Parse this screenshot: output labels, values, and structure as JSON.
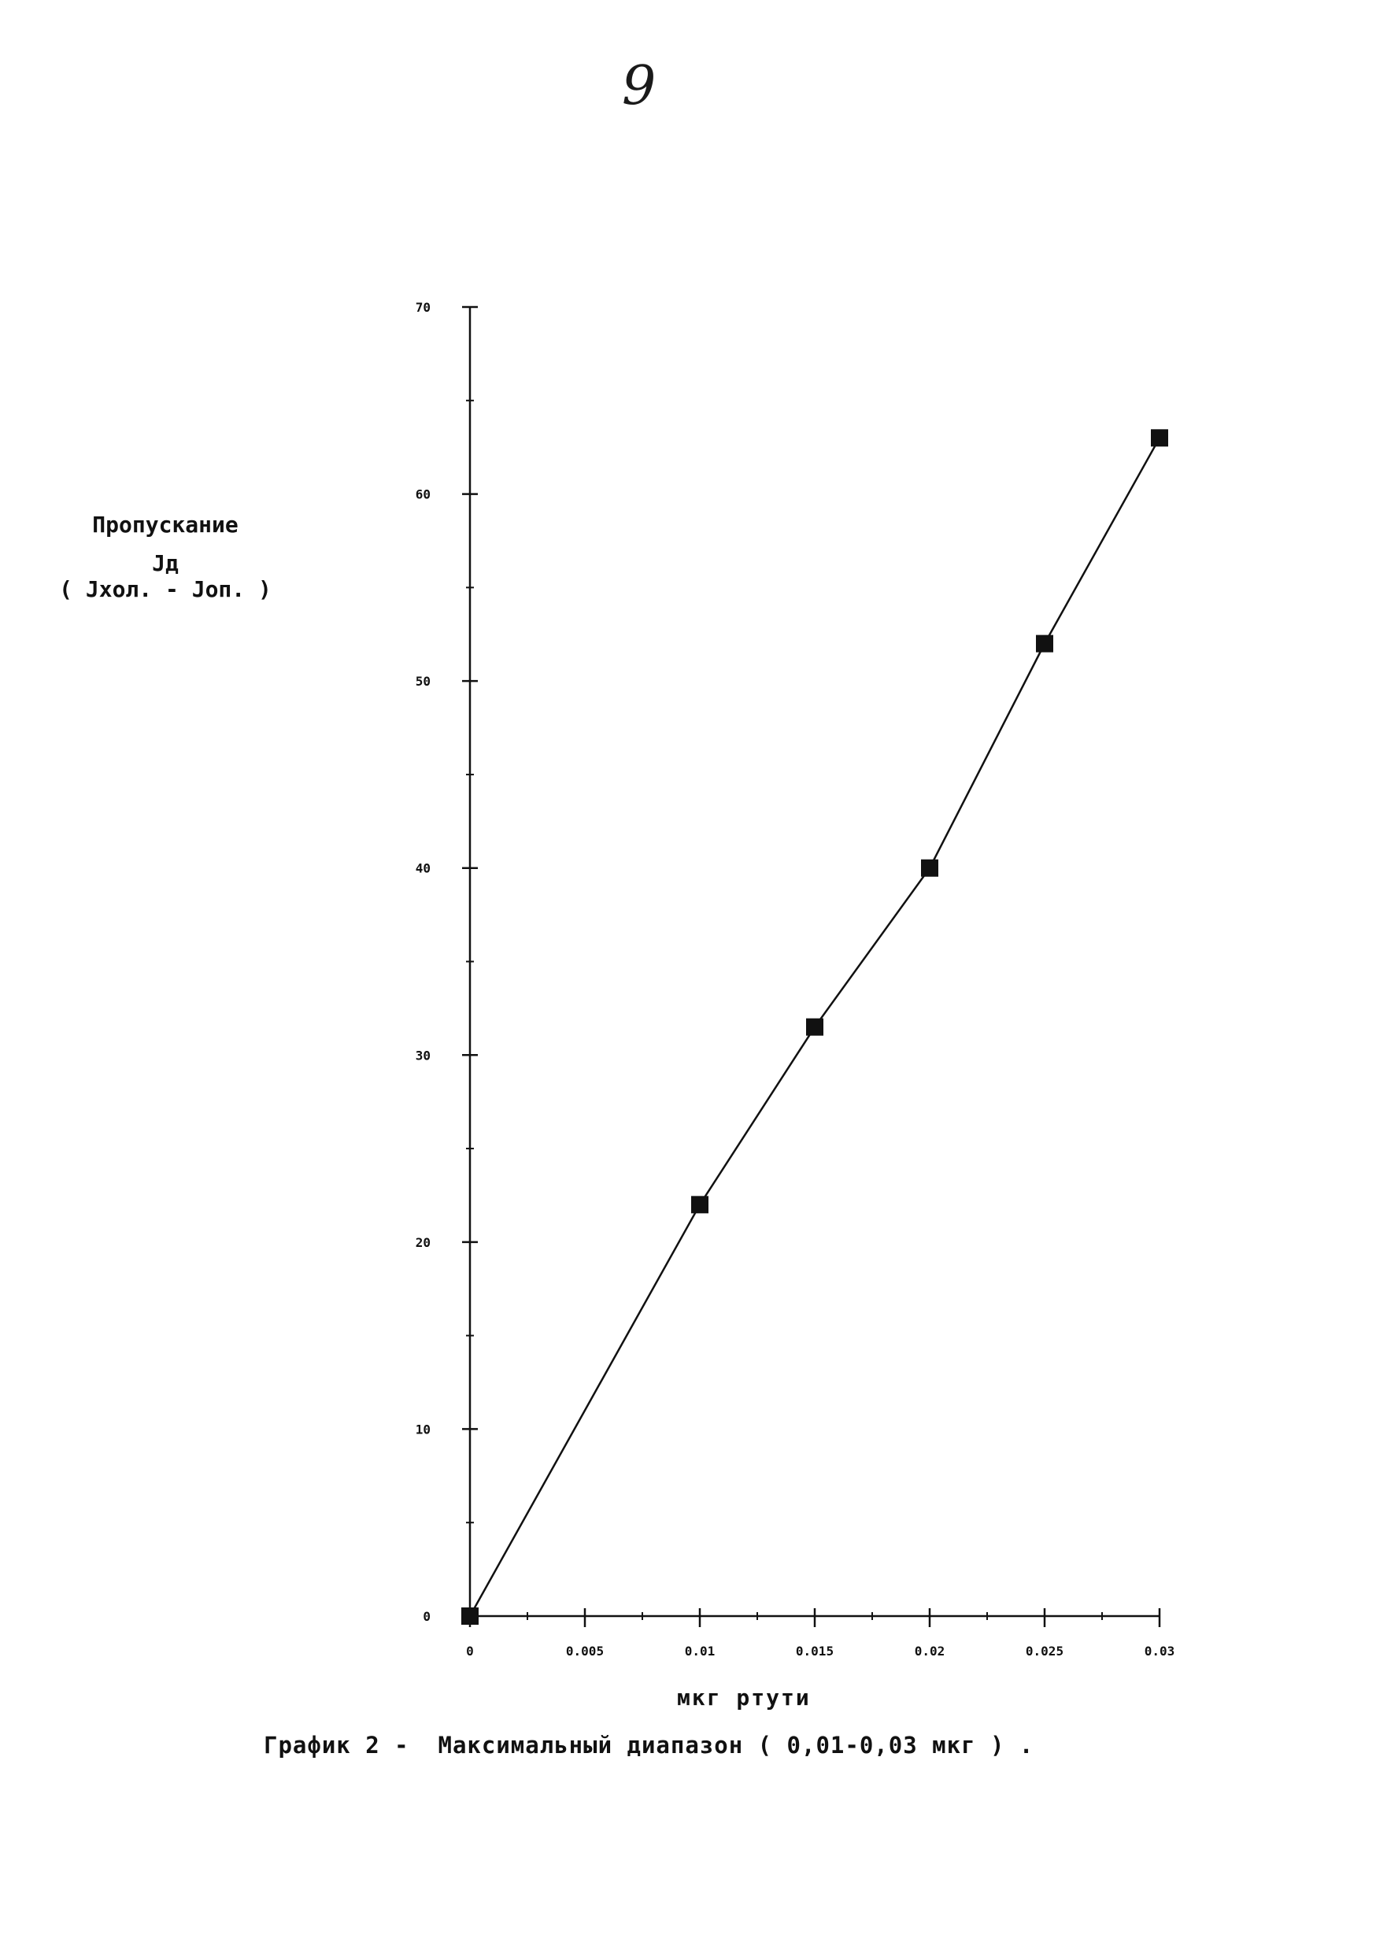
{
  "page": {
    "page_number": "9"
  },
  "chart_data": {
    "type": "line",
    "ylabel_title": "Пропускание",
    "ylabel_symbol": "Jд",
    "ylabel_formula": "( Jхол. - Jоп. )",
    "xlabel": "мкг ртути",
    "caption": "График 2 -  Максимальный диапазон ( 0,01-0,03 мкг ) .",
    "xlim": [
      0,
      0.03
    ],
    "ylim": [
      0,
      70
    ],
    "x_ticks": [
      "0",
      "0.005",
      "0.01",
      "0.015",
      "0.02",
      "0.025",
      "0.03"
    ],
    "x_tick_values": [
      0,
      0.005,
      0.01,
      0.015,
      0.02,
      0.025,
      0.03
    ],
    "y_ticks": [
      "0",
      "10",
      "20",
      "30",
      "40",
      "50",
      "60",
      "70"
    ],
    "y_tick_values": [
      0,
      10,
      20,
      30,
      40,
      50,
      60,
      70
    ],
    "x_minor_step": 0.0025,
    "y_minor_step": 5,
    "grid": false,
    "series": [
      {
        "x": [
          0,
          0.01,
          0.015,
          0.02,
          0.025,
          0.03
        ],
        "y": [
          0,
          22,
          31.5,
          40,
          52,
          63
        ],
        "marker": "square",
        "color": "#111111"
      }
    ]
  }
}
